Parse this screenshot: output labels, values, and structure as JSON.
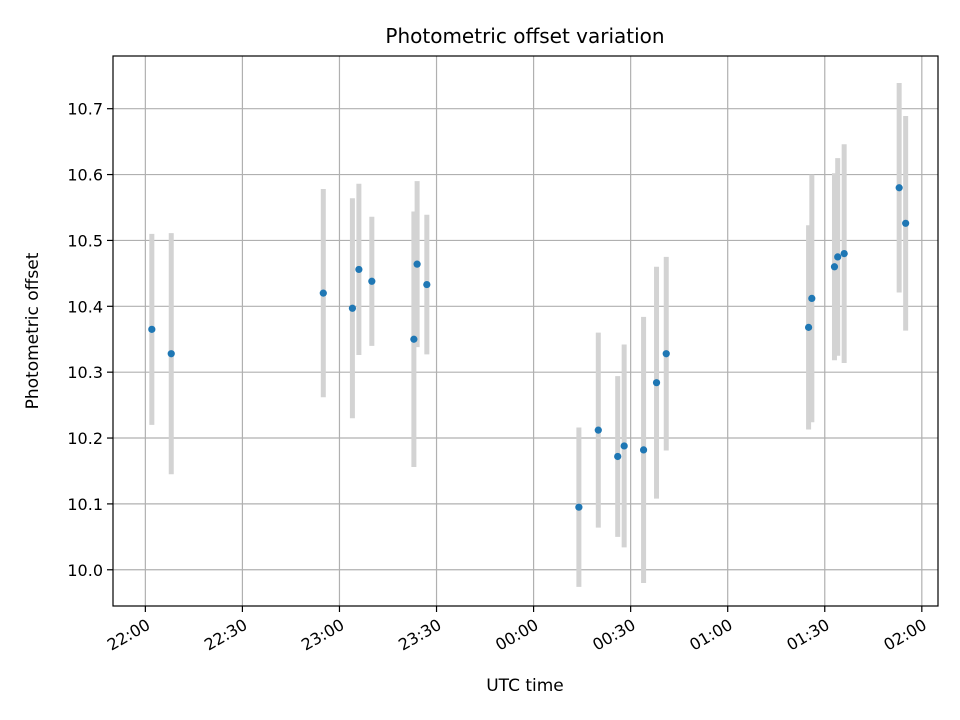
{
  "chart_data": {
    "type": "scatter",
    "title": "Photometric offset variation",
    "xlabel": "UTC time",
    "ylabel": "Photometric offset",
    "x_axis_kind": "time",
    "xlim": [
      "21:50",
      "02:05"
    ],
    "ylim": [
      9.945,
      10.78
    ],
    "grid": true,
    "marker_color": "#1f77b4",
    "errorbar_color": "#d3d3d3",
    "x_ticks": [
      "22:00",
      "22:30",
      "23:00",
      "23:30",
      "00:00",
      "00:30",
      "01:00",
      "01:30",
      "02:00"
    ],
    "y_ticks": [
      "10.0",
      "10.1",
      "10.2",
      "10.3",
      "10.4",
      "10.5",
      "10.6",
      "10.7"
    ],
    "points": [
      {
        "x": "22:02",
        "y": 10.365,
        "err": 0.145
      },
      {
        "x": "22:08",
        "y": 10.328,
        "err": 0.183
      },
      {
        "x": "22:55",
        "y": 10.42,
        "err": 0.158
      },
      {
        "x": "23:04",
        "y": 10.397,
        "err": 0.167
      },
      {
        "x": "23:06",
        "y": 10.456,
        "err": 0.13
      },
      {
        "x": "23:10",
        "y": 10.438,
        "err": 0.098
      },
      {
        "x": "23:23",
        "y": 10.35,
        "err": 0.194
      },
      {
        "x": "23:24",
        "y": 10.464,
        "err": 0.126
      },
      {
        "x": "23:27",
        "y": 10.433,
        "err": 0.106
      },
      {
        "x": "00:14",
        "y": 10.095,
        "err": 0.121
      },
      {
        "x": "00:20",
        "y": 10.212,
        "err": 0.148
      },
      {
        "x": "00:26",
        "y": 10.172,
        "err": 0.122
      },
      {
        "x": "00:28",
        "y": 10.188,
        "err": 0.154
      },
      {
        "x": "00:34",
        "y": 10.182,
        "err": 0.202
      },
      {
        "x": "00:38",
        "y": 10.284,
        "err": 0.176
      },
      {
        "x": "00:41",
        "y": 10.328,
        "err": 0.147
      },
      {
        "x": "01:25",
        "y": 10.368,
        "err": 0.155
      },
      {
        "x": "01:26",
        "y": 10.412,
        "err": 0.188
      },
      {
        "x": "01:33",
        "y": 10.46,
        "err": 0.142
      },
      {
        "x": "01:34",
        "y": 10.475,
        "err": 0.15
      },
      {
        "x": "01:36",
        "y": 10.48,
        "err": 0.166
      },
      {
        "x": "01:53",
        "y": 10.58,
        "err": 0.159
      },
      {
        "x": "01:55",
        "y": 10.526,
        "err": 0.163
      }
    ]
  }
}
